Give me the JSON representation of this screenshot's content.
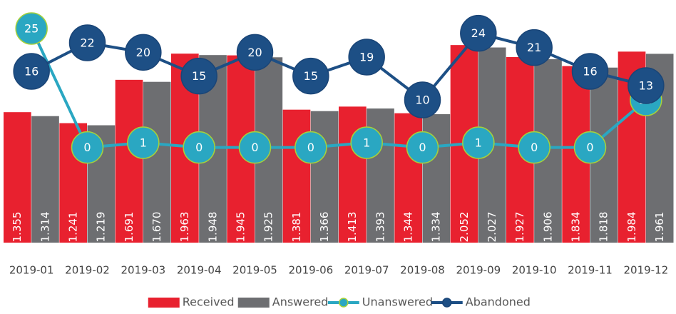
{
  "chart_data": {
    "type": "bar_line",
    "categories": [
      "2019-01",
      "2019-02",
      "2019-03",
      "2019-04",
      "2019-05",
      "2019-06",
      "2019-07",
      "2019-08",
      "2019-09",
      "2019-10",
      "2019-11",
      "2019-12"
    ],
    "ylim": [
      0,
      2520
    ],
    "y2lim": [
      -20,
      31
    ],
    "series": [
      {
        "name": "Received",
        "type": "bar",
        "color": "#e8212f",
        "values": [
          1355,
          1241,
          1691,
          1963,
          1945,
          1381,
          1413,
          1344,
          2052,
          1927,
          1834,
          1984
        ],
        "value_labels": [
          "1.355",
          "1.241",
          "1.691",
          "1.963",
          "1.945",
          "1.381",
          "1.413",
          "1.344",
          "2.052",
          "1.927",
          "1.834",
          "1.984"
        ]
      },
      {
        "name": "Answered",
        "type": "bar",
        "color": "#6d6e71",
        "values": [
          1314,
          1219,
          1670,
          1948,
          1925,
          1366,
          1393,
          1334,
          2027,
          1906,
          1818,
          1961
        ],
        "value_labels": [
          "1.314",
          "1.219",
          "1.670",
          "1.948",
          "1.925",
          "1.366",
          "1.393",
          "1.334",
          "2.027",
          "1.906",
          "1.818",
          "1.961"
        ]
      },
      {
        "name": "Unanswered",
        "type": "line",
        "axis": "y2",
        "color": "#2aa7c2",
        "values": [
          25,
          0,
          1,
          0,
          0,
          0,
          1,
          0,
          1,
          0,
          0,
          10
        ]
      },
      {
        "name": "Abandoned",
        "type": "line",
        "axis": "y2",
        "color": "#1d4f85",
        "values": [
          16,
          22,
          20,
          15,
          20,
          15,
          19,
          10,
          24,
          21,
          16,
          13
        ]
      }
    ],
    "legend": "bottom"
  }
}
